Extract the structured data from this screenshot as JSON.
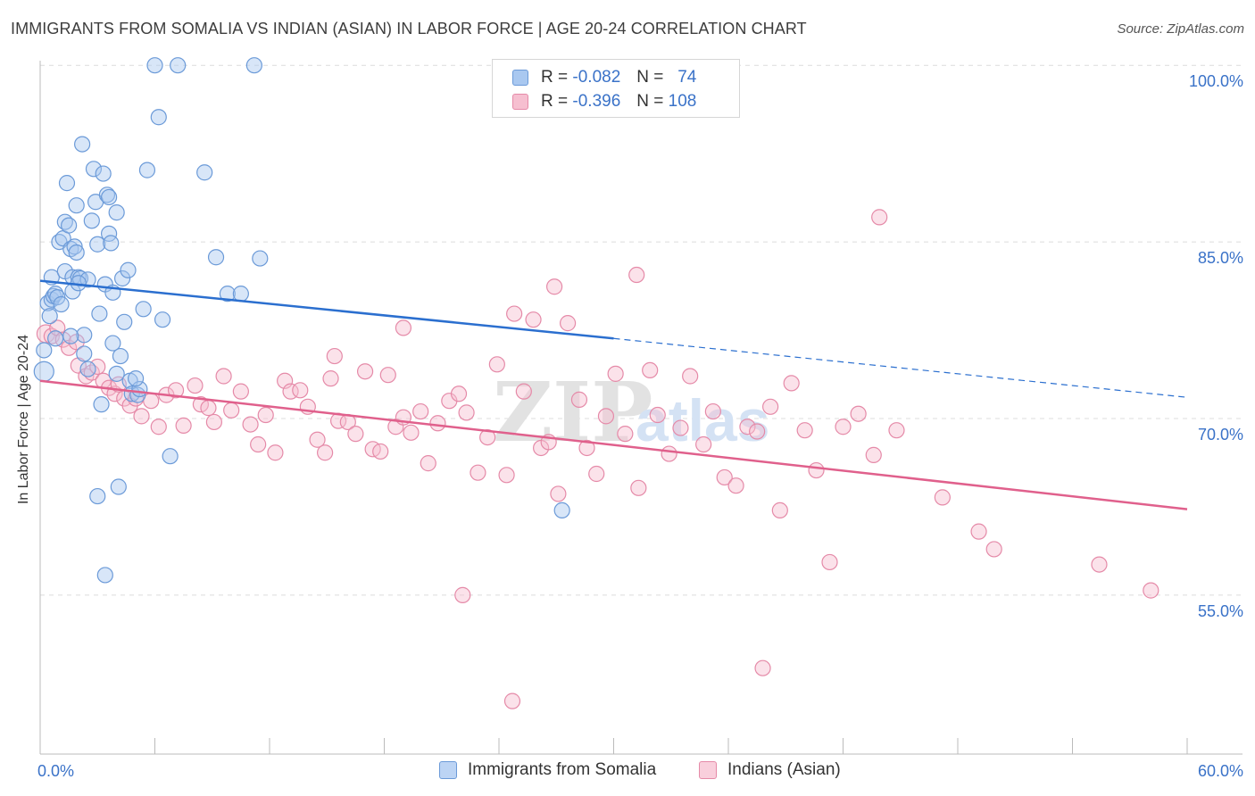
{
  "title": "IMMIGRANTS FROM SOMALIA VS INDIAN (ASIAN) IN LABOR FORCE | AGE 20-24 CORRELATION CHART",
  "source": "Source: ZipAtlas.com",
  "legend": {
    "r_label": "R =",
    "n_label": "N =",
    "series": [
      {
        "name": "Immigrants from Somalia",
        "r": "-0.082",
        "n": "74",
        "fill": "#a9c8f0",
        "stroke": "#6b9ad8",
        "line": "#2b6fcf"
      },
      {
        "name": "Indians (Asian)",
        "r": "-0.396",
        "n": "108",
        "fill": "#f6bfd0",
        "stroke": "#e58aa8",
        "line": "#e0608c"
      }
    ]
  },
  "watermark": {
    "zip": "ZIP",
    "atlas": "atlas"
  },
  "chart_data": {
    "type": "scatter",
    "title": "IMMIGRANTS FROM SOMALIA VS INDIAN (ASIAN) IN LABOR FORCE | AGE 20-24 CORRELATION CHART",
    "xlabel": "",
    "ylabel": "In Labor Force | Age 20-24",
    "xlim": [
      0,
      60
    ],
    "ylim": [
      41.5,
      101
    ],
    "x_tick_labels": [
      {
        "value": 0,
        "label": "0.0%"
      },
      {
        "value": 60,
        "label": "60.0%"
      }
    ],
    "y_tick_labels": [
      {
        "value": 100,
        "label": "100.0%"
      },
      {
        "value": 85,
        "label": "85.0%"
      },
      {
        "value": 70,
        "label": "70.0%"
      },
      {
        "value": 55,
        "label": "55.0%"
      }
    ],
    "grid": true,
    "series": [
      {
        "name": "Immigrants from Somalia",
        "trend": {
          "x0": 0,
          "y0": 81.7,
          "x1": 30,
          "y1": 76.8,
          "dashed_to": 60,
          "dashed_y": 71.8
        },
        "points": [
          [
            0.2,
            74.0
          ],
          [
            0.2,
            75.8
          ],
          [
            0.4,
            79.8
          ],
          [
            0.5,
            78.7
          ],
          [
            0.6,
            80.1
          ],
          [
            0.6,
            82.0
          ],
          [
            0.7,
            80.4
          ],
          [
            0.8,
            76.8
          ],
          [
            0.8,
            80.6
          ],
          [
            0.9,
            80.3
          ],
          [
            1.0,
            85.0
          ],
          [
            1.1,
            79.7
          ],
          [
            1.2,
            85.3
          ],
          [
            1.3,
            82.5
          ],
          [
            1.3,
            86.7
          ],
          [
            1.4,
            90.0
          ],
          [
            1.5,
            86.4
          ],
          [
            1.6,
            84.4
          ],
          [
            1.7,
            82.0
          ],
          [
            1.7,
            80.8
          ],
          [
            1.8,
            84.6
          ],
          [
            1.9,
            88.1
          ],
          [
            1.9,
            84.1
          ],
          [
            2.0,
            82.0
          ],
          [
            2.1,
            81.9
          ],
          [
            2.2,
            93.3
          ],
          [
            2.3,
            75.5
          ],
          [
            2.3,
            77.1
          ],
          [
            2.5,
            74.2
          ],
          [
            2.5,
            81.8
          ],
          [
            2.7,
            86.8
          ],
          [
            2.8,
            91.2
          ],
          [
            2.9,
            88.4
          ],
          [
            3.0,
            84.8
          ],
          [
            3.1,
            78.9
          ],
          [
            3.2,
            71.2
          ],
          [
            3.3,
            90.8
          ],
          [
            3.4,
            81.4
          ],
          [
            3.5,
            89.0
          ],
          [
            3.6,
            88.8
          ],
          [
            3.6,
            85.7
          ],
          [
            3.7,
            84.9
          ],
          [
            3.8,
            80.7
          ],
          [
            3.8,
            76.4
          ],
          [
            4.0,
            87.5
          ],
          [
            4.0,
            73.8
          ],
          [
            4.2,
            75.3
          ],
          [
            4.3,
            81.9
          ],
          [
            4.4,
            78.2
          ],
          [
            4.6,
            82.6
          ],
          [
            4.7,
            73.2
          ],
          [
            4.8,
            72.1
          ],
          [
            5.1,
            72.0
          ],
          [
            5.2,
            72.5
          ],
          [
            5.6,
            91.1
          ],
          [
            5.4,
            79.3
          ],
          [
            5.0,
            73.4
          ],
          [
            6.0,
            100.0
          ],
          [
            6.2,
            95.6
          ],
          [
            6.4,
            78.4
          ],
          [
            6.8,
            66.8
          ],
          [
            7.2,
            100.0
          ],
          [
            8.6,
            90.9
          ],
          [
            9.2,
            83.7
          ],
          [
            9.8,
            80.6
          ],
          [
            10.5,
            80.6
          ],
          [
            11.2,
            100.0
          ],
          [
            11.5,
            83.6
          ],
          [
            4.1,
            64.2
          ],
          [
            3.0,
            63.4
          ],
          [
            3.4,
            56.7
          ],
          [
            27.3,
            62.2
          ],
          [
            2.0,
            81.5
          ],
          [
            1.6,
            77.0
          ]
        ]
      },
      {
        "name": "Indians (Asian)",
        "trend": {
          "x0": 0,
          "y0": 73.2,
          "x1": 60,
          "y1": 62.3
        },
        "points": [
          [
            0.3,
            77.2
          ],
          [
            0.6,
            77.0
          ],
          [
            0.9,
            77.7
          ],
          [
            1.2,
            76.7
          ],
          [
            1.5,
            76.0
          ],
          [
            1.9,
            76.5
          ],
          [
            2.0,
            74.5
          ],
          [
            2.4,
            73.6
          ],
          [
            2.7,
            73.9
          ],
          [
            3.0,
            74.4
          ],
          [
            3.3,
            73.2
          ],
          [
            3.6,
            72.6
          ],
          [
            3.9,
            72.1
          ],
          [
            4.1,
            72.9
          ],
          [
            4.4,
            71.7
          ],
          [
            4.7,
            71.1
          ],
          [
            5.0,
            71.7
          ],
          [
            5.3,
            70.2
          ],
          [
            5.8,
            71.5
          ],
          [
            6.2,
            69.3
          ],
          [
            6.6,
            72.0
          ],
          [
            7.1,
            72.4
          ],
          [
            7.5,
            69.4
          ],
          [
            8.1,
            72.8
          ],
          [
            8.4,
            71.2
          ],
          [
            8.8,
            70.9
          ],
          [
            9.1,
            69.7
          ],
          [
            9.6,
            73.6
          ],
          [
            10.0,
            70.7
          ],
          [
            10.5,
            72.3
          ],
          [
            11.0,
            69.5
          ],
          [
            11.4,
            67.8
          ],
          [
            11.8,
            70.3
          ],
          [
            12.3,
            67.1
          ],
          [
            12.8,
            73.2
          ],
          [
            13.1,
            72.3
          ],
          [
            13.6,
            72.4
          ],
          [
            14.0,
            71.0
          ],
          [
            14.5,
            68.2
          ],
          [
            14.9,
            67.1
          ],
          [
            15.2,
            73.4
          ],
          [
            15.6,
            69.8
          ],
          [
            16.1,
            69.7
          ],
          [
            16.5,
            68.7
          ],
          [
            17.0,
            74.0
          ],
          [
            17.4,
            67.4
          ],
          [
            17.8,
            67.2
          ],
          [
            18.2,
            73.7
          ],
          [
            18.6,
            69.3
          ],
          [
            19.0,
            70.1
          ],
          [
            19.4,
            68.8
          ],
          [
            19.9,
            70.6
          ],
          [
            20.3,
            66.2
          ],
          [
            20.8,
            69.6
          ],
          [
            21.4,
            71.5
          ],
          [
            21.9,
            72.1
          ],
          [
            22.3,
            70.5
          ],
          [
            22.9,
            65.4
          ],
          [
            23.4,
            68.4
          ],
          [
            23.9,
            74.6
          ],
          [
            24.4,
            65.2
          ],
          [
            24.8,
            78.9
          ],
          [
            25.3,
            72.3
          ],
          [
            25.8,
            78.4
          ],
          [
            26.2,
            67.5
          ],
          [
            26.6,
            68.0
          ],
          [
            27.1,
            63.6
          ],
          [
            27.6,
            78.1
          ],
          [
            28.2,
            71.6
          ],
          [
            28.6,
            67.5
          ],
          [
            29.1,
            65.3
          ],
          [
            29.6,
            70.2
          ],
          [
            30.1,
            73.8
          ],
          [
            30.6,
            68.7
          ],
          [
            31.3,
            64.1
          ],
          [
            31.9,
            74.1
          ],
          [
            32.3,
            70.3
          ],
          [
            32.9,
            67.0
          ],
          [
            33.5,
            69.2
          ],
          [
            34.0,
            73.6
          ],
          [
            34.7,
            67.8
          ],
          [
            35.2,
            70.6
          ],
          [
            35.8,
            65.0
          ],
          [
            36.4,
            64.3
          ],
          [
            37.0,
            69.3
          ],
          [
            37.5,
            68.9
          ],
          [
            38.2,
            71.0
          ],
          [
            38.7,
            62.2
          ],
          [
            39.3,
            73.0
          ],
          [
            40.0,
            69.0
          ],
          [
            40.6,
            65.6
          ],
          [
            41.3,
            57.8
          ],
          [
            42.0,
            69.3
          ],
          [
            42.8,
            70.4
          ],
          [
            43.6,
            66.9
          ],
          [
            44.8,
            69.0
          ],
          [
            47.2,
            63.3
          ],
          [
            49.1,
            60.4
          ],
          [
            49.9,
            58.9
          ],
          [
            55.4,
            57.6
          ],
          [
            58.1,
            55.4
          ],
          [
            43.9,
            87.1
          ],
          [
            31.2,
            82.2
          ],
          [
            26.9,
            81.2
          ],
          [
            19.0,
            77.7
          ],
          [
            15.4,
            75.3
          ],
          [
            22.1,
            55.0
          ],
          [
            24.7,
            46.0
          ],
          [
            37.8,
            48.8
          ]
        ]
      }
    ]
  },
  "axis": {
    "y_label": "In Labor Force | Age 20-24"
  }
}
